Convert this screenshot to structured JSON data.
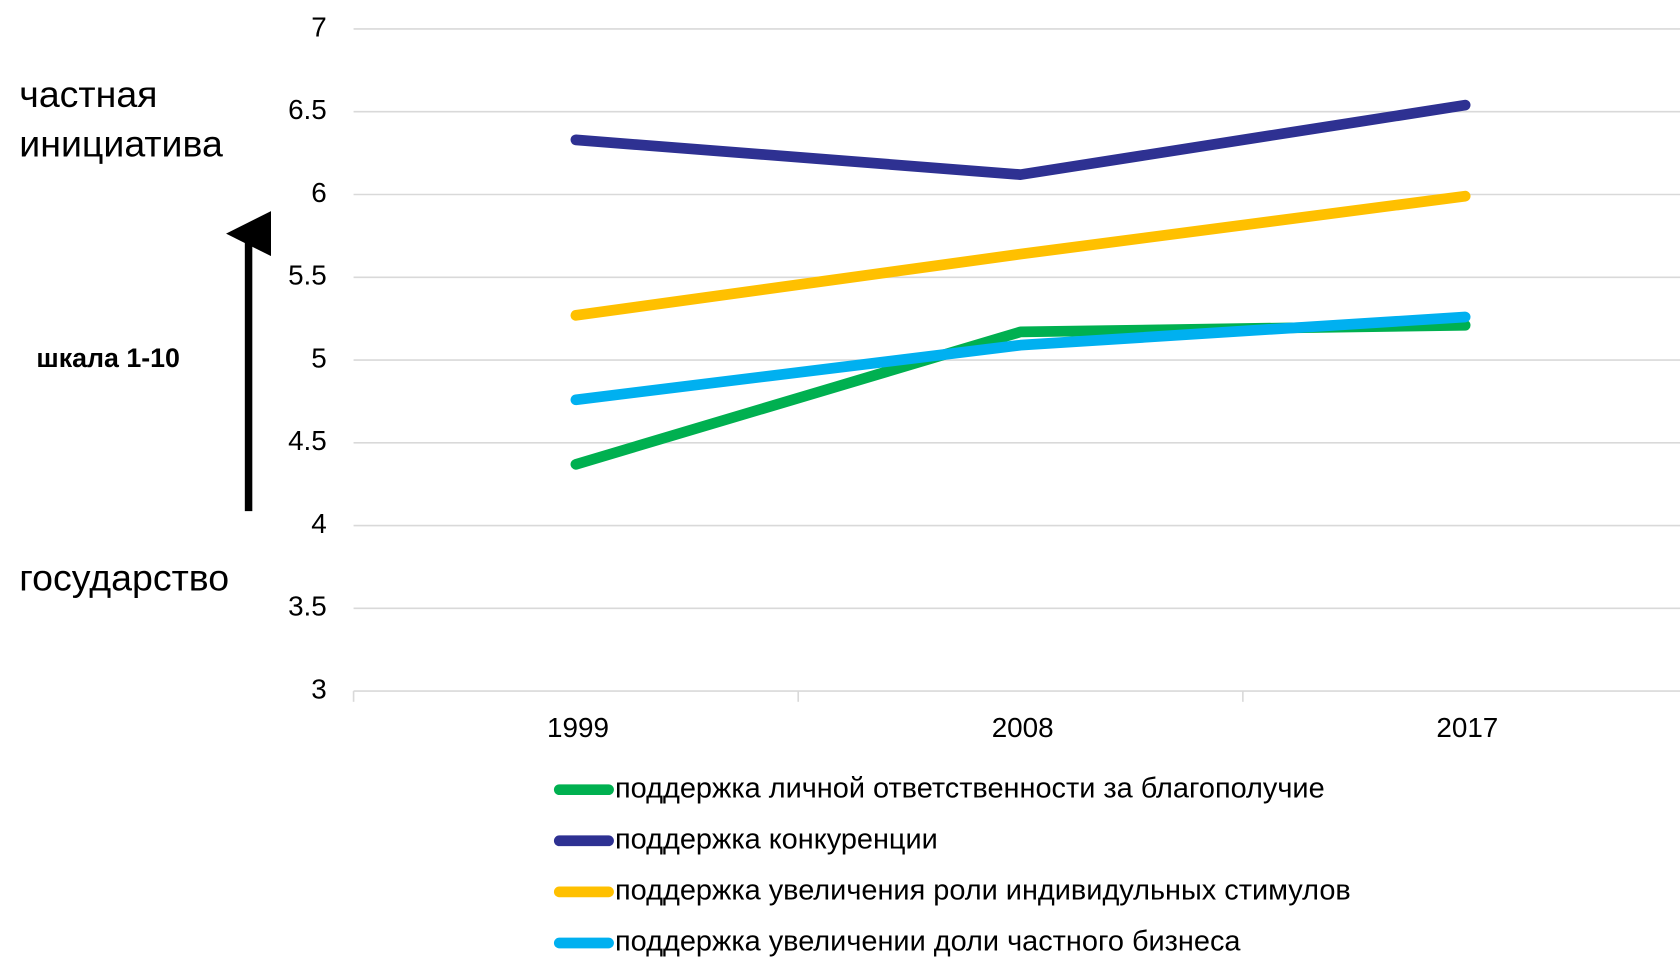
{
  "chart_data": {
    "type": "line",
    "categories": [
      "1999",
      "2008",
      "2017"
    ],
    "series": [
      {
        "name": "поддержка личной ответственности за благополучие",
        "color": "#00b050",
        "values": [
          4.37,
          5.17,
          5.21
        ]
      },
      {
        "name": "поддержка конкуренции",
        "color": "#2e3192",
        "values": [
          6.33,
          6.12,
          6.54
        ]
      },
      {
        "name": "поддержка увеличения роли индивидульных стимулов",
        "color": "#ffc000",
        "values": [
          5.27,
          5.64,
          5.99
        ]
      },
      {
        "name": "поддержка увеличении доли частного бизнеса",
        "color": "#00b0f0",
        "values": [
          4.76,
          5.09,
          5.26
        ]
      }
    ],
    "ylim": [
      3,
      7
    ],
    "yticks": [
      3,
      3.5,
      4,
      4.5,
      5,
      5.5,
      6,
      6.5,
      7
    ],
    "grid": true,
    "annotations": [
      "частная инициатива",
      "шкала 1-10",
      "государство"
    ]
  }
}
